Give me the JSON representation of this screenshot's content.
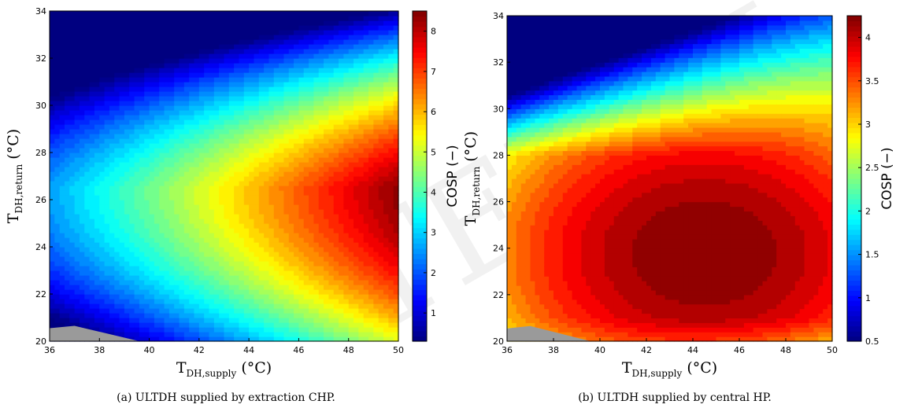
{
  "chart_data": [
    {
      "type": "heatmap",
      "subtitle": "(a) ULTDH supplied by extraction CHP.",
      "xlabel_main": "T",
      "xlabel_sub": "DH,supply",
      "xlabel_unit": " (°C)",
      "ylabel_main": "T",
      "ylabel_sub": "DH,return",
      "ylabel_unit": " (°C)",
      "xlim": [
        36,
        50
      ],
      "ylim": [
        20,
        34
      ],
      "x_ticks": [
        36,
        38,
        40,
        42,
        44,
        46,
        48,
        50
      ],
      "y_ticks": [
        20,
        22,
        24,
        26,
        28,
        30,
        32,
        34
      ],
      "colorbar_label": "COSP (−)",
      "colorbar_range": [
        0.3,
        8.5
      ],
      "colorbar_ticks": [
        1,
        2,
        3,
        4,
        5,
        6,
        7,
        8
      ],
      "max_point": [
        50,
        26.5
      ],
      "max_value": 8.4,
      "contour_levels": 40
    },
    {
      "type": "heatmap",
      "subtitle": "(b) ULTDH supplied by central HP.",
      "xlabel_main": "T",
      "xlabel_sub": "DH,supply",
      "xlabel_unit": " (°C)",
      "ylabel_main": "T",
      "ylabel_sub": "DH,return",
      "ylabel_unit": " (°C)",
      "xlim": [
        36,
        50
      ],
      "ylim": [
        20,
        34
      ],
      "x_ticks": [
        36,
        38,
        40,
        42,
        44,
        46,
        48,
        50
      ],
      "y_ticks": [
        20,
        22,
        24,
        26,
        28,
        30,
        32,
        34
      ],
      "colorbar_label": "COSP (−)",
      "colorbar_range": [
        0.5,
        4.25
      ],
      "colorbar_ticks": [
        0.5,
        1,
        1.5,
        2,
        2.5,
        3,
        3.5,
        4
      ],
      "max_point": [
        44.5,
        23.8
      ],
      "max_value": 4.25,
      "contour_levels": 30
    }
  ]
}
